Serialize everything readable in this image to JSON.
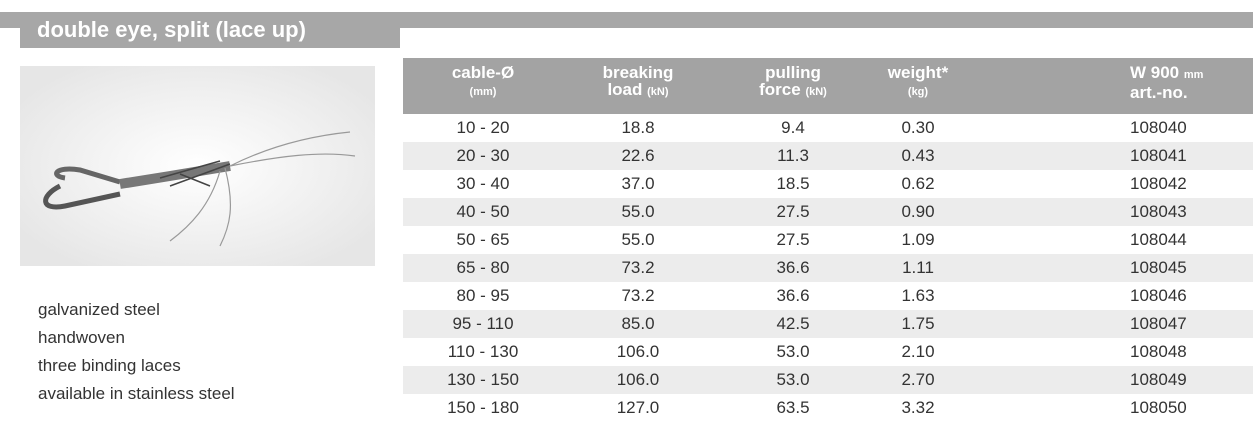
{
  "header": {
    "title": "double eye, split (lace up)"
  },
  "features": [
    "galvanized steel",
    "handwoven",
    "three binding laces",
    "available in stainless steel"
  ],
  "table": {
    "headers": [
      {
        "top": "cable-Ø",
        "bottom_small": "(mm)"
      },
      {
        "top": "breaking",
        "bottom": "load",
        "bottom_small": "(kN)"
      },
      {
        "top": "pulling",
        "bottom": "force",
        "bottom_small": "(kN)"
      },
      {
        "top": "weight*",
        "bottom_small": "(kg)"
      },
      {
        "top": "W 900",
        "top_small": "mm",
        "bottom": "art.-no."
      }
    ],
    "rows": [
      [
        "10 - 20",
        "18.8",
        "9.4",
        "0.30",
        "108040"
      ],
      [
        "20 - 30",
        "22.6",
        "11.3",
        "0.43",
        "108041"
      ],
      [
        "30 - 40",
        "37.0",
        "18.5",
        "0.62",
        "108042"
      ],
      [
        "40 - 50",
        "55.0",
        "27.5",
        "0.90",
        "108043"
      ],
      [
        "50 - 65",
        "55.0",
        "27.5",
        "1.09",
        "108044"
      ],
      [
        "65 - 80",
        "73.2",
        "36.6",
        "1.11",
        "108045"
      ],
      [
        "80 - 95",
        "73.2",
        "36.6",
        "1.63",
        "108046"
      ],
      [
        "95 - 110",
        "85.0",
        "42.5",
        "1.75",
        "108047"
      ],
      [
        "110 - 130",
        "106.0",
        "53.0",
        "2.10",
        "108048"
      ],
      [
        "130 - 150",
        "106.0",
        "53.0",
        "2.70",
        "108049"
      ],
      [
        "150 - 180",
        "127.0",
        "63.5",
        "3.32",
        "108050"
      ]
    ]
  }
}
